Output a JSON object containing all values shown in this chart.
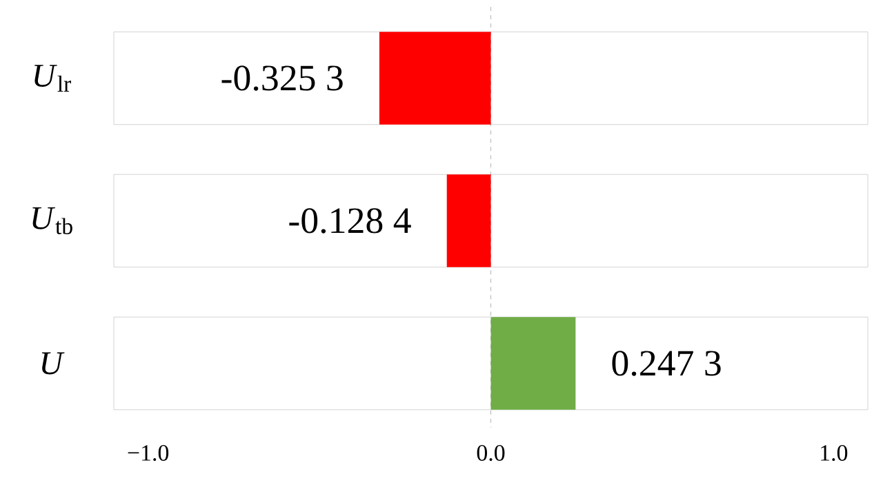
{
  "chart_data": {
    "type": "bar",
    "orientation": "horizontal",
    "categories": [
      "*U*$_{lr}$",
      "*U*$_{tb}$",
      "*U*"
    ],
    "values": [
      -0.3253,
      -0.1284,
      0.2473
    ],
    "colors": [
      "#ff0000",
      "#ff0000",
      "#70ad47"
    ],
    "value_labels": [
      "-0.325 3",
      "-0.128 4",
      "0.247 3"
    ],
    "xlim": [
      -1.1,
      1.1
    ],
    "xticks": [
      {
        "value": -1,
        "label": "−1.0"
      },
      {
        "value": 0,
        "label": "0.0"
      },
      {
        "value": 1,
        "label": "1.0"
      }
    ],
    "ref_lines": [
      {
        "axis": "x",
        "value": 0,
        "color": "#a0a0a0",
        "line_style": "dashed"
      }
    ],
    "grid": false
  }
}
